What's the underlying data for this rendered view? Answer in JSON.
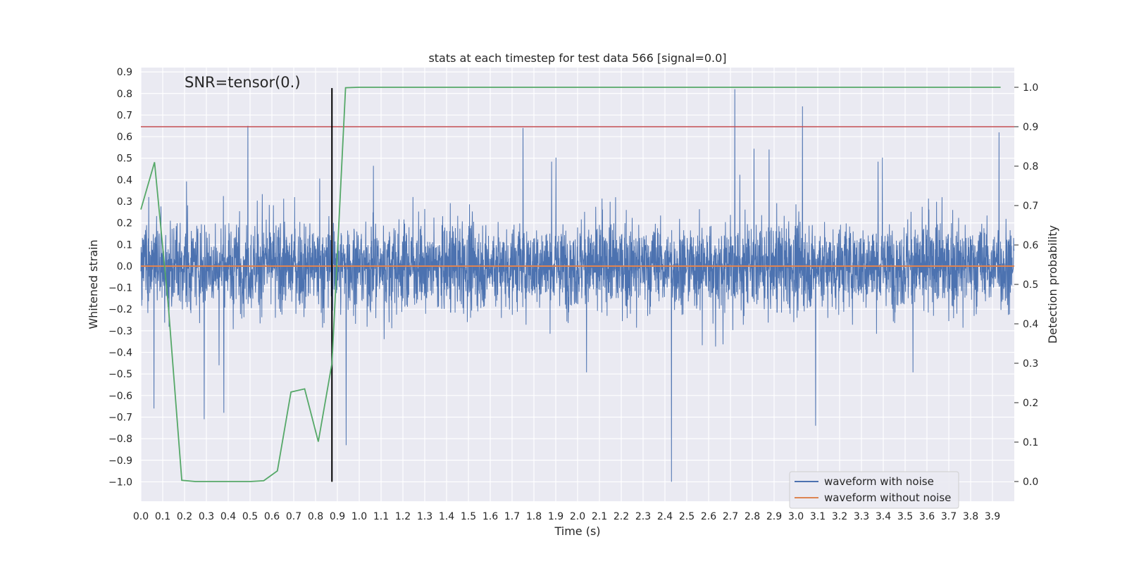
{
  "chart_data": {
    "type": "line",
    "title": "stats at each timestep for test data 566 [signal=0.0]",
    "xlabel": "Time (s)",
    "ylabel": "Whitened strain",
    "y2label": "Detection probability",
    "annotation": "SNR=tensor(0.)",
    "xlim": [
      0.0,
      4.0
    ],
    "ylim": [
      -1.09,
      0.92
    ],
    "y2lim": [
      -0.05,
      1.05
    ],
    "x_ticks": [
      "0.0",
      "0.1",
      "0.2",
      "0.3",
      "0.4",
      "0.5",
      "0.6",
      "0.7",
      "0.8",
      "0.9",
      "1.0",
      "1.1",
      "1.2",
      "1.3",
      "1.4",
      "1.5",
      "1.6",
      "1.7",
      "1.8",
      "1.9",
      "2.0",
      "2.1",
      "2.2",
      "2.3",
      "2.4",
      "2.5",
      "2.6",
      "2.7",
      "2.8",
      "2.9",
      "3.0",
      "3.1",
      "3.2",
      "3.3",
      "3.4",
      "3.5",
      "3.6",
      "3.7",
      "3.8",
      "3.9"
    ],
    "y_ticks": [
      "0.9",
      "0.8",
      "0.7",
      "0.6",
      "0.5",
      "0.4",
      "0.3",
      "0.2",
      "0.1",
      "0.0",
      "−0.1",
      "−0.2",
      "−0.3",
      "−0.4",
      "−0.5",
      "−0.6",
      "−0.7",
      "−0.8",
      "−0.9",
      "−1.0"
    ],
    "y2_ticks": [
      "1.0",
      "0.9",
      "0.8",
      "0.7",
      "0.6",
      "0.5",
      "0.4",
      "0.3",
      "0.2",
      "0.1",
      "0.0"
    ],
    "grid": true,
    "legend_position": "lower-right",
    "legend": [
      {
        "label": "waveform with noise",
        "color": "#4c72b0"
      },
      {
        "label": "waveform without noise",
        "color": "#dd8452"
      }
    ],
    "series": [
      {
        "name": "waveform with noise",
        "color": "#4c72b0",
        "kind": "noise",
        "t_start": 0.0,
        "t_end": 4.0,
        "notable_peaks": [
          {
            "x": 0.06,
            "y": -0.66
          },
          {
            "x": 0.29,
            "y": -0.71
          },
          {
            "x": 0.38,
            "y": -0.68
          },
          {
            "x": 0.49,
            "y": 0.65
          },
          {
            "x": 0.94,
            "y": -0.83
          },
          {
            "x": 1.75,
            "y": 0.64
          },
          {
            "x": 2.43,
            "y": -1.0
          },
          {
            "x": 2.72,
            "y": 0.82
          },
          {
            "x": 3.03,
            "y": 0.74
          },
          {
            "x": 3.09,
            "y": -0.74
          },
          {
            "x": 3.93,
            "y": 0.62
          }
        ]
      },
      {
        "name": "waveform without noise",
        "color": "#dd8452",
        "axis": "left",
        "x": [
          0.0,
          4.0
        ],
        "y": [
          0.0,
          0.0
        ]
      },
      {
        "name": "detection probability",
        "color": "#55a868",
        "axis": "right",
        "x": [
          0.0,
          0.0625,
          0.125,
          0.1875,
          0.25,
          0.3125,
          0.375,
          0.4375,
          0.5,
          0.5625,
          0.625,
          0.6875,
          0.75,
          0.8125,
          0.875,
          0.9375,
          1.0,
          3.9375
        ],
        "y": [
          0.69,
          0.81,
          0.45,
          0.003,
          0.0,
          0.0,
          0.0,
          0.0,
          0.0,
          0.002,
          0.027,
          0.227,
          0.235,
          0.101,
          0.3,
          0.999,
          1.0,
          1.0
        ]
      }
    ],
    "threshold": {
      "axis": "right",
      "y": 0.9,
      "color": "#c44e52"
    },
    "vline": {
      "x": 0.875,
      "ymin": -1.0,
      "ymax": 0.825,
      "color": "#000000"
    }
  }
}
